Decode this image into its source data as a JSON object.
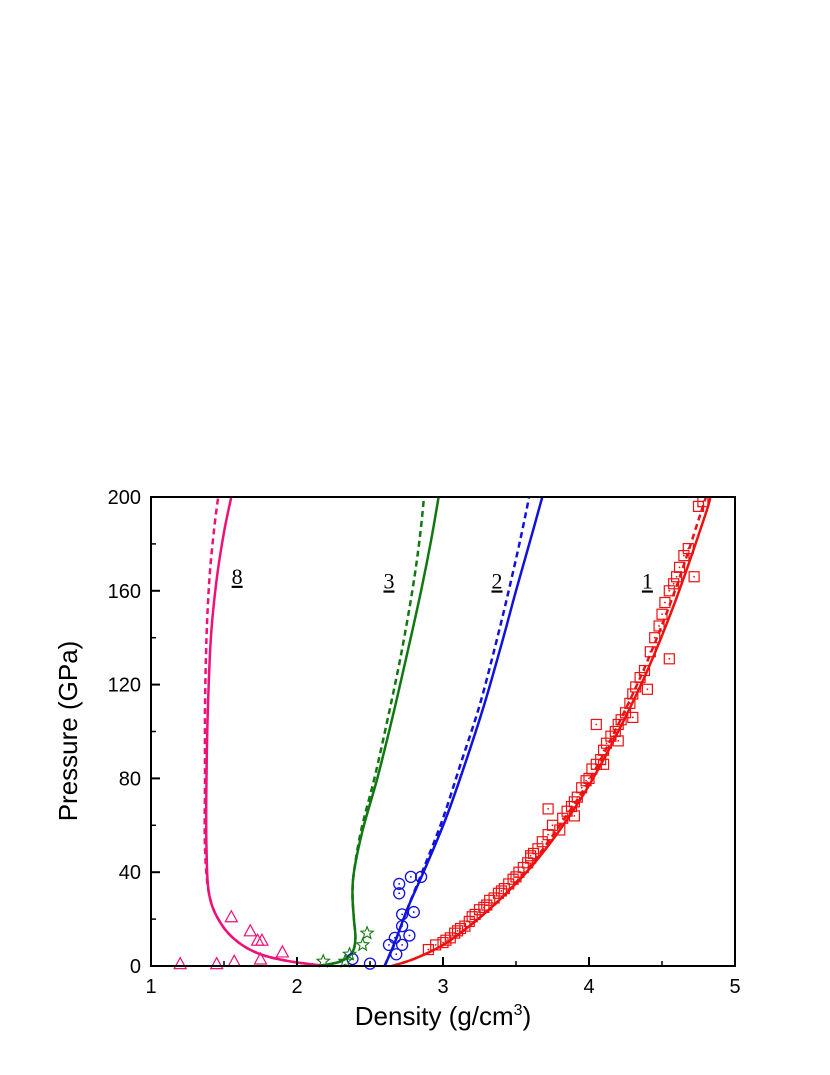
{
  "chart_data": {
    "type": "scatter",
    "title": "",
    "xlabel": "Density (g/cm",
    "xlabel_sup": "3",
    "xlabel_tail": ")",
    "ylabel": "Pressure (GPa)",
    "xlim": [
      1,
      5
    ],
    "ylim": [
      0,
      200
    ],
    "x_ticks": [
      "1",
      "2",
      "3",
      "4",
      "5"
    ],
    "y_ticks": [
      "0",
      "40",
      "80",
      "120",
      "160",
      "200"
    ],
    "grid": false,
    "series": [
      {
        "label": "1",
        "color": "#ee1111",
        "marker": "square-dot",
        "solid": [
          [
            2.65,
            0
          ],
          [
            2.8,
            3
          ],
          [
            3.0,
            9
          ],
          [
            3.2,
            18
          ],
          [
            3.4,
            29
          ],
          [
            3.6,
            42
          ],
          [
            3.8,
            58
          ],
          [
            4.0,
            77
          ],
          [
            4.2,
            100
          ],
          [
            4.4,
            126
          ],
          [
            4.6,
            157
          ],
          [
            4.8,
            193
          ],
          [
            4.83,
            200
          ]
        ],
        "dashed": [
          [
            2.65,
            0
          ],
          [
            2.8,
            3
          ],
          [
            3.0,
            9
          ],
          [
            3.2,
            18
          ],
          [
            3.4,
            29
          ],
          [
            3.6,
            43
          ],
          [
            3.8,
            60
          ],
          [
            4.0,
            79
          ],
          [
            4.2,
            103
          ],
          [
            4.4,
            130
          ],
          [
            4.6,
            162
          ],
          [
            4.78,
            196
          ],
          [
            4.8,
            200
          ]
        ],
        "points": [
          [
            2.9,
            7
          ],
          [
            2.95,
            9
          ],
          [
            3.0,
            10
          ],
          [
            3.02,
            11
          ],
          [
            3.05,
            12
          ],
          [
            3.08,
            14
          ],
          [
            3.1,
            15
          ],
          [
            3.12,
            16
          ],
          [
            3.15,
            17
          ],
          [
            3.18,
            19
          ],
          [
            3.2,
            21
          ],
          [
            3.22,
            22
          ],
          [
            3.25,
            24
          ],
          [
            3.28,
            25
          ],
          [
            3.3,
            26
          ],
          [
            3.32,
            28
          ],
          [
            3.35,
            29
          ],
          [
            3.38,
            31
          ],
          [
            3.4,
            32
          ],
          [
            3.42,
            33
          ],
          [
            3.45,
            35
          ],
          [
            3.48,
            37
          ],
          [
            3.5,
            38
          ],
          [
            3.52,
            40
          ],
          [
            3.55,
            42
          ],
          [
            3.58,
            44
          ],
          [
            3.6,
            46
          ],
          [
            3.62,
            48
          ],
          [
            3.65,
            50
          ],
          [
            3.68,
            53
          ],
          [
            3.72,
            56
          ],
          [
            3.75,
            60
          ],
          [
            3.8,
            58
          ],
          [
            3.82,
            63
          ],
          [
            3.85,
            66
          ],
          [
            3.88,
            68
          ],
          [
            3.9,
            70
          ],
          [
            3.92,
            72
          ],
          [
            3.95,
            76
          ],
          [
            3.98,
            79
          ],
          [
            4.0,
            80
          ],
          [
            4.02,
            84
          ],
          [
            4.05,
            86
          ],
          [
            4.08,
            88
          ],
          [
            4.1,
            92
          ],
          [
            4.12,
            95
          ],
          [
            4.15,
            98
          ],
          [
            4.18,
            100
          ],
          [
            4.2,
            103
          ],
          [
            4.22,
            105
          ],
          [
            4.25,
            108
          ],
          [
            4.28,
            112
          ],
          [
            4.3,
            116
          ],
          [
            4.32,
            119
          ],
          [
            4.35,
            123
          ],
          [
            4.38,
            126
          ],
          [
            4.4,
            118
          ],
          [
            4.42,
            134
          ],
          [
            4.45,
            140
          ],
          [
            4.48,
            145
          ],
          [
            4.5,
            150
          ],
          [
            4.52,
            155
          ],
          [
            4.55,
            160
          ],
          [
            4.58,
            163
          ],
          [
            4.6,
            166
          ],
          [
            4.62,
            170
          ],
          [
            4.65,
            175
          ],
          [
            4.68,
            178
          ],
          [
            4.72,
            166
          ],
          [
            4.75,
            196
          ],
          [
            4.78,
            198
          ],
          [
            3.72,
            67
          ],
          [
            4.05,
            103
          ],
          [
            4.3,
            106
          ],
          [
            4.55,
            131
          ],
          [
            4.2,
            96
          ],
          [
            4.1,
            86
          ],
          [
            3.9,
            64
          ],
          [
            3.6,
            47
          ]
        ]
      },
      {
        "label": "2",
        "color": "#1111dd",
        "marker": "circle-dot",
        "solid": [
          [
            2.6,
            0
          ],
          [
            2.67,
            10
          ],
          [
            2.76,
            25
          ],
          [
            2.88,
            42
          ],
          [
            3.02,
            63
          ],
          [
            3.15,
            86
          ],
          [
            3.28,
            111
          ],
          [
            3.4,
            137
          ],
          [
            3.5,
            160
          ],
          [
            3.6,
            182
          ],
          [
            3.68,
            200
          ]
        ],
        "dashed": [
          [
            2.6,
            0
          ],
          [
            2.67,
            10
          ],
          [
            2.76,
            25
          ],
          [
            2.87,
            42
          ],
          [
            3.0,
            63
          ],
          [
            3.12,
            86
          ],
          [
            3.25,
            111
          ],
          [
            3.36,
            137
          ],
          [
            3.45,
            160
          ],
          [
            3.53,
            182
          ],
          [
            3.59,
            200
          ]
        ],
        "points": [
          [
            2.5,
            1
          ],
          [
            2.63,
            9
          ],
          [
            2.67,
            12
          ],
          [
            2.68,
            5
          ],
          [
            2.7,
            31
          ],
          [
            2.7,
            35
          ],
          [
            2.72,
            22
          ],
          [
            2.72,
            17
          ],
          [
            2.72,
            9
          ],
          [
            2.77,
            13
          ],
          [
            2.78,
            38
          ],
          [
            2.8,
            23
          ],
          [
            2.85,
            38
          ],
          [
            2.38,
            3
          ]
        ]
      },
      {
        "label": "3",
        "color": "#117711",
        "marker": "star",
        "solid": [
          [
            2.15,
            0
          ],
          [
            2.3,
            2
          ],
          [
            2.38,
            6
          ],
          [
            2.4,
            12
          ],
          [
            2.39,
            20
          ],
          [
            2.38,
            30
          ],
          [
            2.39,
            40
          ],
          [
            2.45,
            58
          ],
          [
            2.55,
            80
          ],
          [
            2.65,
            105
          ],
          [
            2.75,
            132
          ],
          [
            2.85,
            160
          ],
          [
            2.92,
            182
          ],
          [
            2.97,
            200
          ]
        ],
        "dashed": [
          [
            2.15,
            0
          ],
          [
            2.3,
            2
          ],
          [
            2.38,
            6
          ],
          [
            2.4,
            12
          ],
          [
            2.39,
            20
          ],
          [
            2.38,
            30
          ],
          [
            2.39,
            40
          ],
          [
            2.44,
            58
          ],
          [
            2.53,
            80
          ],
          [
            2.62,
            105
          ],
          [
            2.71,
            132
          ],
          [
            2.79,
            160
          ],
          [
            2.84,
            182
          ],
          [
            2.87,
            200
          ]
        ],
        "points": [
          [
            2.18,
            2
          ],
          [
            2.33,
            2
          ],
          [
            2.36,
            5
          ],
          [
            2.45,
            9
          ],
          [
            2.48,
            14
          ]
        ]
      },
      {
        "label": "8",
        "color": "#ee1177",
        "marker": "triangle",
        "solid": [
          [
            2.2,
            0
          ],
          [
            1.95,
            2
          ],
          [
            1.75,
            5
          ],
          [
            1.6,
            10
          ],
          [
            1.48,
            18
          ],
          [
            1.4,
            30
          ],
          [
            1.38,
            50
          ],
          [
            1.38,
            80
          ],
          [
            1.39,
            110
          ],
          [
            1.41,
            140
          ],
          [
            1.45,
            165
          ],
          [
            1.5,
            185
          ],
          [
            1.55,
            200
          ]
        ],
        "dashed": [
          [
            2.2,
            0
          ],
          [
            1.95,
            2
          ],
          [
            1.75,
            5
          ],
          [
            1.6,
            10
          ],
          [
            1.48,
            18
          ],
          [
            1.4,
            30
          ],
          [
            1.37,
            50
          ],
          [
            1.37,
            80
          ],
          [
            1.37,
            110
          ],
          [
            1.38,
            140
          ],
          [
            1.4,
            165
          ],
          [
            1.43,
            185
          ],
          [
            1.46,
            200
          ]
        ],
        "points": [
          [
            1.2,
            1
          ],
          [
            1.45,
            1
          ],
          [
            1.57,
            2
          ],
          [
            1.75,
            3
          ],
          [
            1.55,
            21
          ],
          [
            1.68,
            15
          ],
          [
            1.73,
            11
          ],
          [
            1.76,
            11
          ],
          [
            1.9,
            6
          ]
        ]
      }
    ],
    "curve_labels": [
      {
        "text": "8",
        "x": 1.59,
        "y": 163
      },
      {
        "text": "3",
        "x": 2.63,
        "y": 161
      },
      {
        "text": "2",
        "x": 3.37,
        "y": 161
      },
      {
        "text": "1",
        "x": 4.4,
        "y": 161
      }
    ]
  }
}
